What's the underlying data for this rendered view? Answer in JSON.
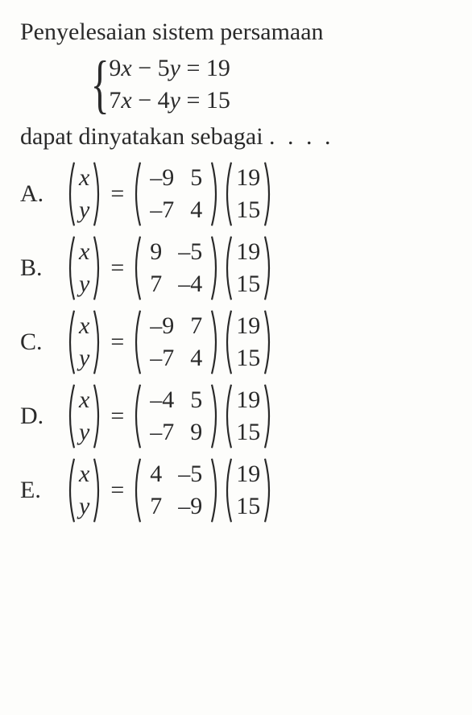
{
  "intro": "Penyelesaian sistem persamaan",
  "system": {
    "eq1_lhs": "9",
    "eq1_x": "x",
    "eq1_mid": " − 5",
    "eq1_y": "y",
    "eq1_rhs": " = 19",
    "eq2_lhs": "7",
    "eq2_x": "x",
    "eq2_mid": " − 4",
    "eq2_y": "y",
    "eq2_rhs": " = 15"
  },
  "outro_a": "dapat dinyatakan sebagai ",
  "outro_dots": ". . . .",
  "var_x": "x",
  "var_y": "y",
  "eq_sign": "=",
  "options": {
    "A": {
      "label": "A.",
      "m": [
        [
          "–9",
          "5"
        ],
        [
          "–7",
          "4"
        ]
      ],
      "v": [
        "19",
        "15"
      ]
    },
    "B": {
      "label": "B.",
      "m": [
        [
          "9",
          "–5"
        ],
        [
          "7",
          "–4"
        ]
      ],
      "v": [
        "19",
        "15"
      ]
    },
    "C": {
      "label": "C.",
      "m": [
        [
          "–9",
          "7"
        ],
        [
          "–7",
          "4"
        ]
      ],
      "v": [
        "19",
        "15"
      ]
    },
    "D": {
      "label": "D.",
      "m": [
        [
          "–4",
          "5"
        ],
        [
          "–7",
          "9"
        ]
      ],
      "v": [
        "19",
        "15"
      ]
    },
    "E": {
      "label": "E.",
      "m": [
        [
          "4",
          "–5"
        ],
        [
          "7",
          "–9"
        ]
      ],
      "v": [
        "19",
        "15"
      ]
    }
  },
  "style": {
    "font_family": "Times New Roman",
    "base_fontsize_pt": 22,
    "text_color": "#2a2a2a",
    "background_color": "#fdfdfb",
    "paren_stroke": "#2a2a2a",
    "paren_stroke_width": 2.2
  }
}
